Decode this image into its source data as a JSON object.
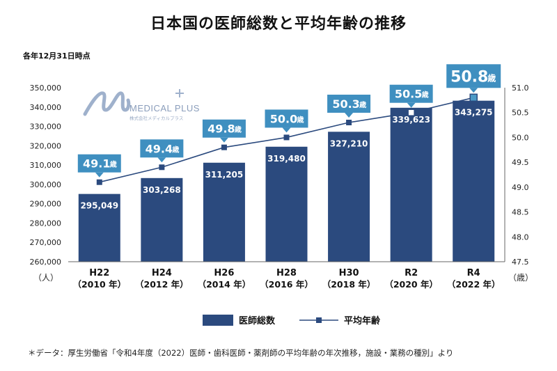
{
  "header": {
    "title": "日本国の医師総数と平均年齢の推移",
    "note": "各年12月31日時点"
  },
  "logo": {
    "text": "MEDICAL PLUS",
    "sub": "株式会社メディカルプラス"
  },
  "source": "＊データ：厚生労働省「令和4年度（2022）医師・歯科医師・薬剤師の平均年齢の年次推移，施設・業務の種別」より",
  "chart_data": {
    "type": "bar",
    "categories": [
      "H22",
      "H24",
      "H26",
      "H28",
      "H30",
      "R2",
      "R4"
    ],
    "category_years": [
      "（2010 年）",
      "（2012 年）",
      "（2014 年）",
      "（2016 年）",
      "（2018 年）",
      "（2020 年）",
      "（2022 年）"
    ],
    "series": [
      {
        "name": "医師総数",
        "type": "bar",
        "axis": "left",
        "values": [
          295049,
          303268,
          311205,
          319480,
          327210,
          339623,
          343275
        ],
        "labels": [
          "295,049",
          "303,268",
          "311,205",
          "319,480",
          "327,210",
          "339,623",
          "343,275"
        ],
        "color": "#2b4a7e"
      },
      {
        "name": "平均年齢",
        "type": "line",
        "axis": "right",
        "values": [
          49.1,
          49.4,
          49.8,
          50.0,
          50.3,
          50.5,
          50.8
        ],
        "labels": [
          "49.1",
          "49.4",
          "49.8",
          "50.0",
          "50.3",
          "50.5",
          "50.8"
        ],
        "unit": "歳",
        "color": "#2b4a7e",
        "label_color": "#3f8fc0"
      }
    ],
    "ylim_left": [
      260000,
      350000
    ],
    "yticks_left": [
      "260,000",
      "270,000",
      "280,000",
      "290,000",
      "300,000",
      "310,000",
      "320,000",
      "330,000",
      "340,000",
      "350,000"
    ],
    "ylabel_left": "（人）",
    "ylim_right": [
      47.5,
      51.0
    ],
    "yticks_right": [
      "47.5",
      "48.0",
      "48.5",
      "49.0",
      "49.5",
      "50.0",
      "50.5",
      "51.0"
    ],
    "ylabel_right": "（歳）",
    "grid": false,
    "legend_position": "bottom-center"
  }
}
